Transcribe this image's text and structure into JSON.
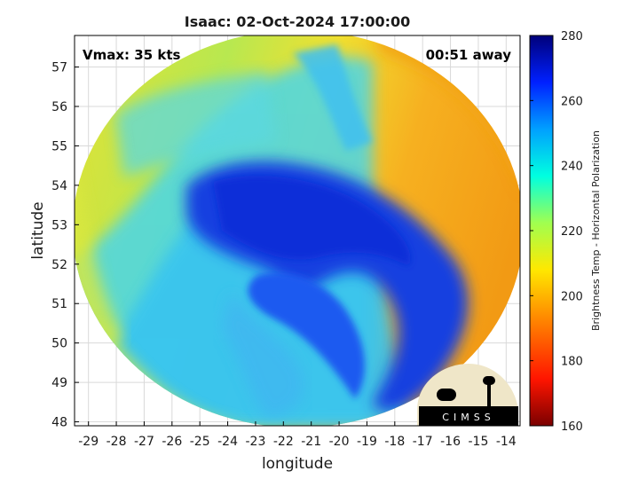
{
  "title": "Isaac: 02-Oct-2024 17:00:00",
  "overlay": {
    "vmax_text": "Vmax: 35 kts",
    "away_text": "00:51 away"
  },
  "xlabel": "longitude",
  "ylabel": "latitude",
  "colorbar": {
    "label": "Brightness Temp - Horizontal Polarization",
    "ticks": [
      "280",
      "260",
      "240",
      "220",
      "200",
      "180",
      "160"
    ],
    "range": [
      160,
      280
    ],
    "colormap": "jet-reversed"
  },
  "logo": {
    "text": "CIMSS"
  },
  "colors": {
    "cold_core": "#0a2fd8",
    "warm_edge": "#f29a14",
    "frame": "#000000",
    "grid": "#d9d9d9"
  },
  "chart_data": {
    "type": "heatmap",
    "title": "Isaac: 02-Oct-2024 17:00:00",
    "xlabel": "longitude",
    "ylabel": "latitude",
    "xlim": [
      -29.5,
      -13.5
    ],
    "ylim": [
      47.9,
      57.8
    ],
    "x_ticks": [
      -29,
      -28,
      -27,
      -26,
      -25,
      -24,
      -23,
      -22,
      -21,
      -20,
      -19,
      -18,
      -17,
      -16,
      -15,
      -14
    ],
    "y_ticks": [
      48,
      49,
      50,
      51,
      52,
      53,
      54,
      55,
      56,
      57
    ],
    "grid": true,
    "value_range": [
      160,
      280
    ],
    "storm_center": {
      "lon": -22.0,
      "lat": 52.9,
      "core_value_k": 262
    },
    "swath_extent": {
      "lon": [
        -29.4,
        -13.6
      ],
      "lat": [
        48.0,
        57.6
      ]
    }
  }
}
